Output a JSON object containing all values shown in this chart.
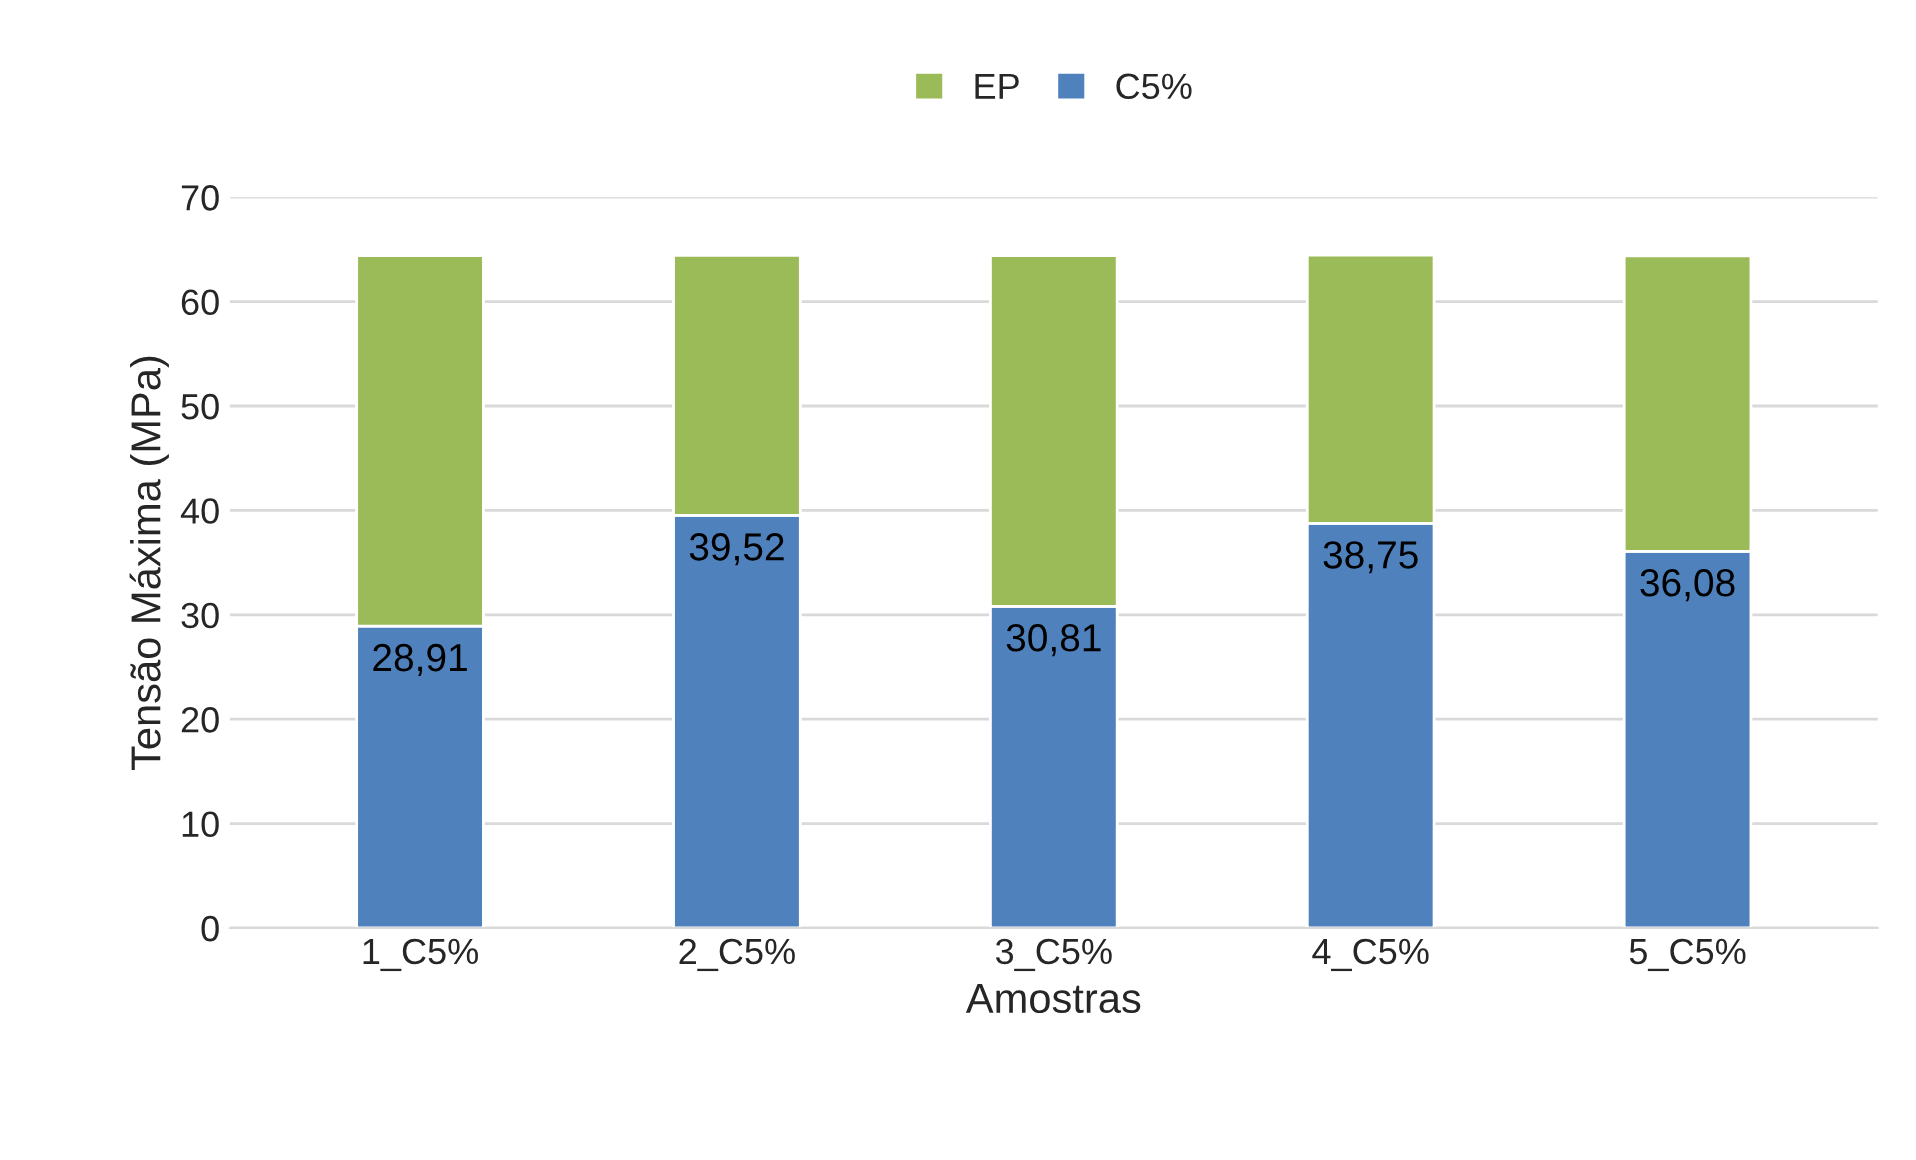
{
  "chart_data": {
    "type": "bar",
    "stacked": true,
    "xlabel": "Amostras",
    "ylabel": "Tensão Máxima (MPa)",
    "categories": [
      "1_C5%",
      "2_C5%",
      "3_C5%",
      "4_C5%",
      "5_C5%"
    ],
    "series": [
      {
        "name": "C5%",
        "color": "#4f81bd",
        "values": [
          28.91,
          39.52,
          30.81,
          38.75,
          36.08
        ],
        "value_labels": [
          "28,91",
          "39,52",
          "30,81",
          "38,75",
          "36,08"
        ]
      },
      {
        "name": "EP",
        "color": "#9bbb59",
        "values": [
          35.5,
          24.9,
          33.6,
          25.7,
          28.3
        ]
      }
    ],
    "ylim": [
      0,
      70
    ],
    "yticks": [
      0,
      10,
      20,
      30,
      40,
      50,
      60,
      70
    ],
    "grid": "y",
    "legend": "top"
  }
}
